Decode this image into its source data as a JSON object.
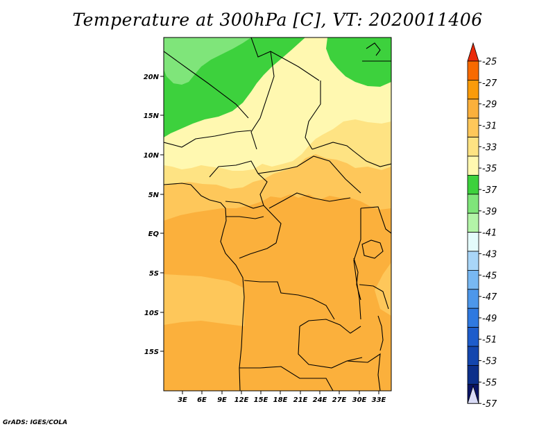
{
  "title": "Temperature at 300hPa [C], VT: 2020011406",
  "footer": "GrADS: IGES/COLA",
  "colors": {
    "c37": "#3dd13d",
    "c39": "#7fe57a",
    "c35": "#fff8b0",
    "c33": "#fee383",
    "c31": "#fec75a",
    "c29": "#fbb03c",
    "border": "#000000"
  },
  "chart_data": {
    "type": "heatmap",
    "title": "Temperature at 300hPa [C], VT: 2020011406",
    "x_ticks": [
      "3E",
      "6E",
      "9E",
      "12E",
      "15E",
      "18E",
      "21E",
      "24E",
      "27E",
      "30E",
      "33E"
    ],
    "y_ticks": [
      "20N",
      "15N",
      "10N",
      "5N",
      "EQ",
      "5S",
      "10S",
      "15S"
    ],
    "colorbar": {
      "labels": [
        "-25",
        "-27",
        "-29",
        "-31",
        "-33",
        "-35",
        "-37",
        "-39",
        "-41",
        "-43",
        "-45",
        "-47",
        "-49",
        "-51",
        "-53",
        "-55",
        "-57"
      ],
      "colors": [
        "#ea2a0a",
        "#f86a00",
        "#fa9b0a",
        "#fbb03c",
        "#fec75a",
        "#fee383",
        "#fff8b0",
        "#3dd13d",
        "#7fe57a",
        "#b3f4a8",
        "#e4fbfb",
        "#a9d6f8",
        "#78b8f2",
        "#4d97ea",
        "#2f79e0",
        "#1d5ccb",
        "#1346ae",
        "#0c2f8a",
        "#0a1466",
        "#d9dbf6"
      ]
    }
  }
}
